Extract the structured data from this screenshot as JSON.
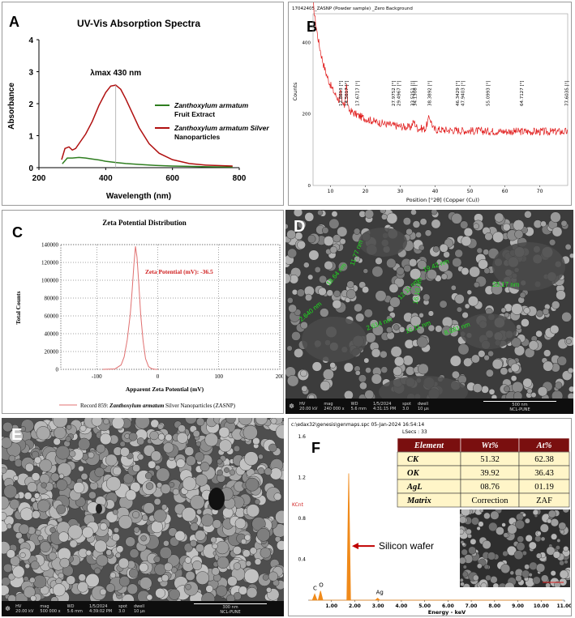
{
  "colors": {
    "uv_extract": "#2e7d1f",
    "uv_nano": "#b01010",
    "xrd": "#e01818",
    "zeta": "#e07070",
    "eds_spectrum": "#f08a1a",
    "table_header_bg": "#7a0f0f",
    "table_row_bg": "#fff5c8",
    "sem_label": "#1ee01e",
    "arrow": "#c00000"
  },
  "panel_a": {
    "letter": "A",
    "chart_data": {
      "type": "line",
      "title": "UV-Vis Absorption Spectra",
      "xlabel": "Wavelength (nm)",
      "ylabel": "Absorbance",
      "xlim": [
        200,
        800
      ],
      "ylim": [
        0,
        4
      ],
      "xticks": [
        "200",
        "400",
        "600",
        "800"
      ],
      "yticks": [
        "0",
        "1",
        "2",
        "3",
        "4"
      ],
      "annotation": "λmax 430 nm",
      "series": [
        {
          "name_line1": "Zanthoxylum armatum",
          "name_line2": "Fruit Extract",
          "x": [
            270,
            285,
            300,
            320,
            340,
            360,
            380,
            400,
            430,
            460,
            500,
            550,
            600,
            650,
            700,
            780
          ],
          "y": [
            0.12,
            0.3,
            0.3,
            0.32,
            0.3,
            0.27,
            0.24,
            0.2,
            0.16,
            0.13,
            0.1,
            0.07,
            0.05,
            0.04,
            0.03,
            0.02
          ]
        },
        {
          "name_line1": "Zanthoxylum armatum Silver",
          "name_line2": "Nanoparticles",
          "x": [
            268,
            278,
            290,
            300,
            310,
            320,
            340,
            360,
            380,
            400,
            415,
            430,
            445,
            460,
            480,
            500,
            530,
            560,
            600,
            650,
            700,
            780
          ],
          "y": [
            0.25,
            0.6,
            0.65,
            0.55,
            0.6,
            0.75,
            1.05,
            1.45,
            1.95,
            2.35,
            2.55,
            2.58,
            2.45,
            2.15,
            1.7,
            1.25,
            0.75,
            0.45,
            0.25,
            0.13,
            0.08,
            0.05
          ]
        }
      ]
    }
  },
  "panel_b": {
    "letter": "B",
    "header": "17042405_ZASNP (Powder sample) _Zero Background",
    "chart_data": {
      "type": "line",
      "title": "",
      "xlabel": "Position [°2θ] (Copper (Cu))",
      "ylabel": "Counts",
      "xlim": [
        5,
        78
      ],
      "ylim": [
        0,
        480
      ],
      "xticks": [
        "10",
        "20",
        "30",
        "40",
        "50",
        "60",
        "70"
      ],
      "yticks": [
        "400",
        "200",
        "0"
      ],
      "peak_labels": [
        "12.8613 [°]",
        "14.5617 [°]",
        "17.6717 [°]",
        "27.9752 [°]",
        "29.4967 [°]",
        "33.5251 [°]",
        "34.1308 [°]",
        "38.3892 [°]",
        "46.3429 [°]",
        "47.9403 [°]",
        "55.0993 [°]",
        "64.7127 [°]",
        "77.6035 [°]"
      ],
      "peak_x": [
        12.86,
        14.56,
        17.67,
        27.98,
        29.5,
        33.53,
        34.13,
        38.39,
        46.34,
        47.94,
        55.1,
        64.71,
        77.6
      ]
    }
  },
  "panel_c": {
    "letter": "C",
    "chart_data": {
      "type": "line",
      "title": "Zeta Potential Distribution",
      "xlabel": "Apparent Zeta Potential (mV)",
      "ylabel": "Total Counts",
      "xlim": [
        -200,
        200
      ],
      "ylim": [
        0,
        140000
      ],
      "xticks": [
        "-100",
        "0",
        "100",
        "200"
      ],
      "yticks": [
        "0",
        "20000",
        "40000",
        "60000",
        "80000",
        "100000",
        "120000",
        "140000"
      ],
      "annotation": "Zeta Potential (mV):   -36.5",
      "legend_prefix": "Record 859: ",
      "legend_italic": "Zanthoxylum armatum",
      "legend_suffix": " Silver Nanoparticles (ZASNP)",
      "series": [
        {
          "x": [
            -90,
            -70,
            -60,
            -55,
            -50,
            -45,
            -42,
            -39,
            -36.5,
            -34,
            -31,
            -28,
            -24,
            -20,
            -15,
            -10,
            -5,
            0
          ],
          "y": [
            0,
            500,
            5000,
            14000,
            33000,
            62000,
            88000,
            118000,
            138000,
            126000,
            96000,
            62000,
            32000,
            12000,
            3000,
            800,
            100,
            0
          ]
        }
      ]
    }
  },
  "panel_d": {
    "letter": "D",
    "sizes": [
      "11.77 nm",
      "19.42 nm",
      "16.10 nm",
      "18.64 nm",
      "23.17 nm",
      "12.11 nm",
      "2.640 nm",
      "2.614 nm",
      "16.11 nm",
      "8.581 nm"
    ],
    "footer": {
      "hv": "HV",
      "hv_val": "20.00 kV",
      "mag": "mag",
      "mag_val": "240 000 x",
      "wd": "WD",
      "wd_val": "5.6 mm",
      "date": "1/5/2024",
      "time": "4:31:15 PM",
      "spot": "spot",
      "spot_val": "3.0",
      "dwell": "dwell",
      "dwell_val": "10 µs",
      "scale": "500 nm",
      "lab": "NCL-PUNE"
    }
  },
  "panel_e": {
    "letter": "E",
    "footer": {
      "hv": "HV",
      "hv_val": "20.00 kV",
      "mag": "mag",
      "mag_val": "500 000 x",
      "wd": "WD",
      "wd_val": "5.6 mm",
      "date": "1/5/2024",
      "time": "4:39:02 PM",
      "spot": "spot",
      "spot_val": "3.0",
      "dwell": "dwell",
      "dwell_val": "10 µs",
      "scale": "300 nm",
      "lab": "NCL-PUNE"
    }
  },
  "panel_f": {
    "letter": "F",
    "header": "c:\\edax32\\genesis\\genmaps.spc  05-Jan-2024 16:54:14",
    "lsecs": "LSecs :  33",
    "arrow_label": "Silicon wafer",
    "table": {
      "headers": [
        "Element",
        "Wt%",
        "At%"
      ],
      "rows": [
        [
          "CK",
          "51.32",
          "62.38"
        ],
        [
          "OK",
          "39.92",
          "36.43"
        ],
        [
          "AgL",
          "08.76",
          "01.19"
        ],
        [
          "Matrix",
          "Correction",
          "ZAF"
        ]
      ]
    },
    "chart_data": {
      "type": "line",
      "title": "",
      "xlabel": "Energy - keV",
      "ylabel": "KCnt",
      "xlim": [
        0,
        11
      ],
      "ylim": [
        0,
        1.6
      ],
      "xticks": [
        "1.00",
        "2.00",
        "3.00",
        "4.00",
        "5.00",
        "6.00",
        "7.00",
        "8.00",
        "9.00",
        "10.00",
        "11.00"
      ],
      "yticks": [
        "0.4",
        "0.8",
        "1.2",
        "1.6"
      ],
      "peaks": [
        {
          "label": "C",
          "x": 0.28,
          "y": 0.06
        },
        {
          "label": "O",
          "x": 0.53,
          "y": 0.09
        },
        {
          "label": "",
          "x": 1.74,
          "y": 1.24
        },
        {
          "label": "Ag",
          "x": 2.98,
          "y": 0.02
        }
      ]
    }
  }
}
